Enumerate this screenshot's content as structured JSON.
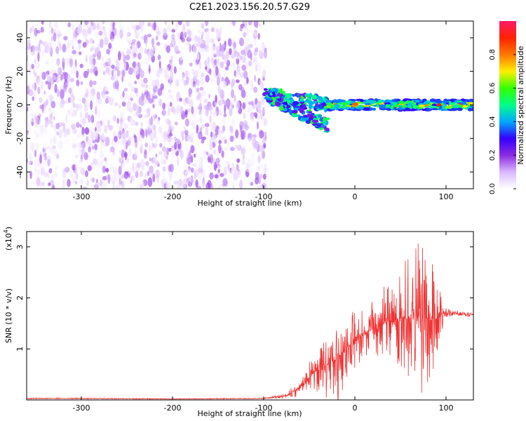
{
  "title": "C2E1.2023.156.20.57.G29",
  "colors": {
    "snr_line": "#ee3333",
    "frame": "#000000",
    "colorbar_stops": [
      "#ffffff",
      "#d9b8ff",
      "#8a2be2",
      "#3300ff",
      "#00aaff",
      "#00ff88",
      "#33ff00",
      "#ffee00",
      "#ff7700",
      "#ff2200",
      "#ff1a66"
    ]
  },
  "chart_data": [
    {
      "type": "heatmap",
      "title": "C2E1.2023.156.20.57.G29",
      "xlabel": "Height of straight line (km)",
      "ylabel": "Frequency (Hz)",
      "xlim": [
        -360,
        130
      ],
      "ylim": [
        -50,
        50
      ],
      "xticks": [
        -300,
        -200,
        -100,
        0,
        100
      ],
      "yticks": [
        -40,
        -20,
        0,
        20,
        40
      ],
      "colorbar": {
        "label": "Normalized spectral amplitude",
        "range": [
          0.0,
          1.0
        ],
        "ticks": [
          0.0,
          0.2,
          0.4,
          0.6,
          0.8
        ],
        "tick_labels": [
          "0.0",
          "0.2",
          "0.4",
          "0.6",
          "0.8"
        ]
      },
      "regions": [
        {
          "name": "noise",
          "x_range": [
            -360,
            -98
          ],
          "freq_range": [
            -50,
            50
          ],
          "amplitude_range": [
            0.02,
            0.2
          ]
        },
        {
          "name": "transition",
          "x_range": [
            -98,
            -30
          ],
          "freq_center_range": [
            -12,
            6
          ],
          "amplitude_range": [
            0.2,
            0.6
          ]
        },
        {
          "name": "carrier",
          "x_range": [
            -30,
            130
          ],
          "freq_center": 0,
          "freq_halfwidth": 3,
          "amplitude_range": [
            0.3,
            0.95
          ]
        }
      ],
      "grid": false
    },
    {
      "type": "line",
      "xlabel": "Height of straight line (km)",
      "ylabel": "SNR (10 * v/v)",
      "y_multiplier_label": "(x10",
      "y_multiplier_exp": "4",
      "y_multiplier_close": ")",
      "xlim": [
        -360,
        130
      ],
      "ylim": [
        0,
        3.3
      ],
      "xticks": [
        -300,
        -200,
        -100,
        0,
        100
      ],
      "yticks": [
        1,
        2,
        3
      ],
      "series": [
        {
          "x": [
            -360,
            -300,
            -200,
            -100,
            -75,
            -60,
            -50,
            -40,
            -30,
            -20,
            -10,
            0,
            10,
            20,
            30,
            40,
            50,
            60,
            70,
            80,
            85,
            90,
            95,
            100,
            110,
            120,
            130
          ],
          "y": [
            0.03,
            0.03,
            0.02,
            0.03,
            0.08,
            0.25,
            0.45,
            0.6,
            0.7,
            0.8,
            1.0,
            1.2,
            1.3,
            1.4,
            1.5,
            1.55,
            1.6,
            1.65,
            1.6,
            1.6,
            1.55,
            1.6,
            1.7,
            1.7,
            1.7,
            1.68,
            1.67
          ],
          "spike_amplitude": [
            0,
            0,
            0,
            0,
            0.05,
            0.2,
            0.3,
            0.5,
            0.7,
            0.9,
            0.7,
            0.6,
            0.6,
            0.6,
            0.7,
            0.8,
            1.0,
            1.3,
            1.5,
            1.5,
            1.2,
            0.8,
            0.4,
            0.1,
            0.05,
            0.05,
            0.05
          ]
        }
      ],
      "grid": false
    }
  ]
}
